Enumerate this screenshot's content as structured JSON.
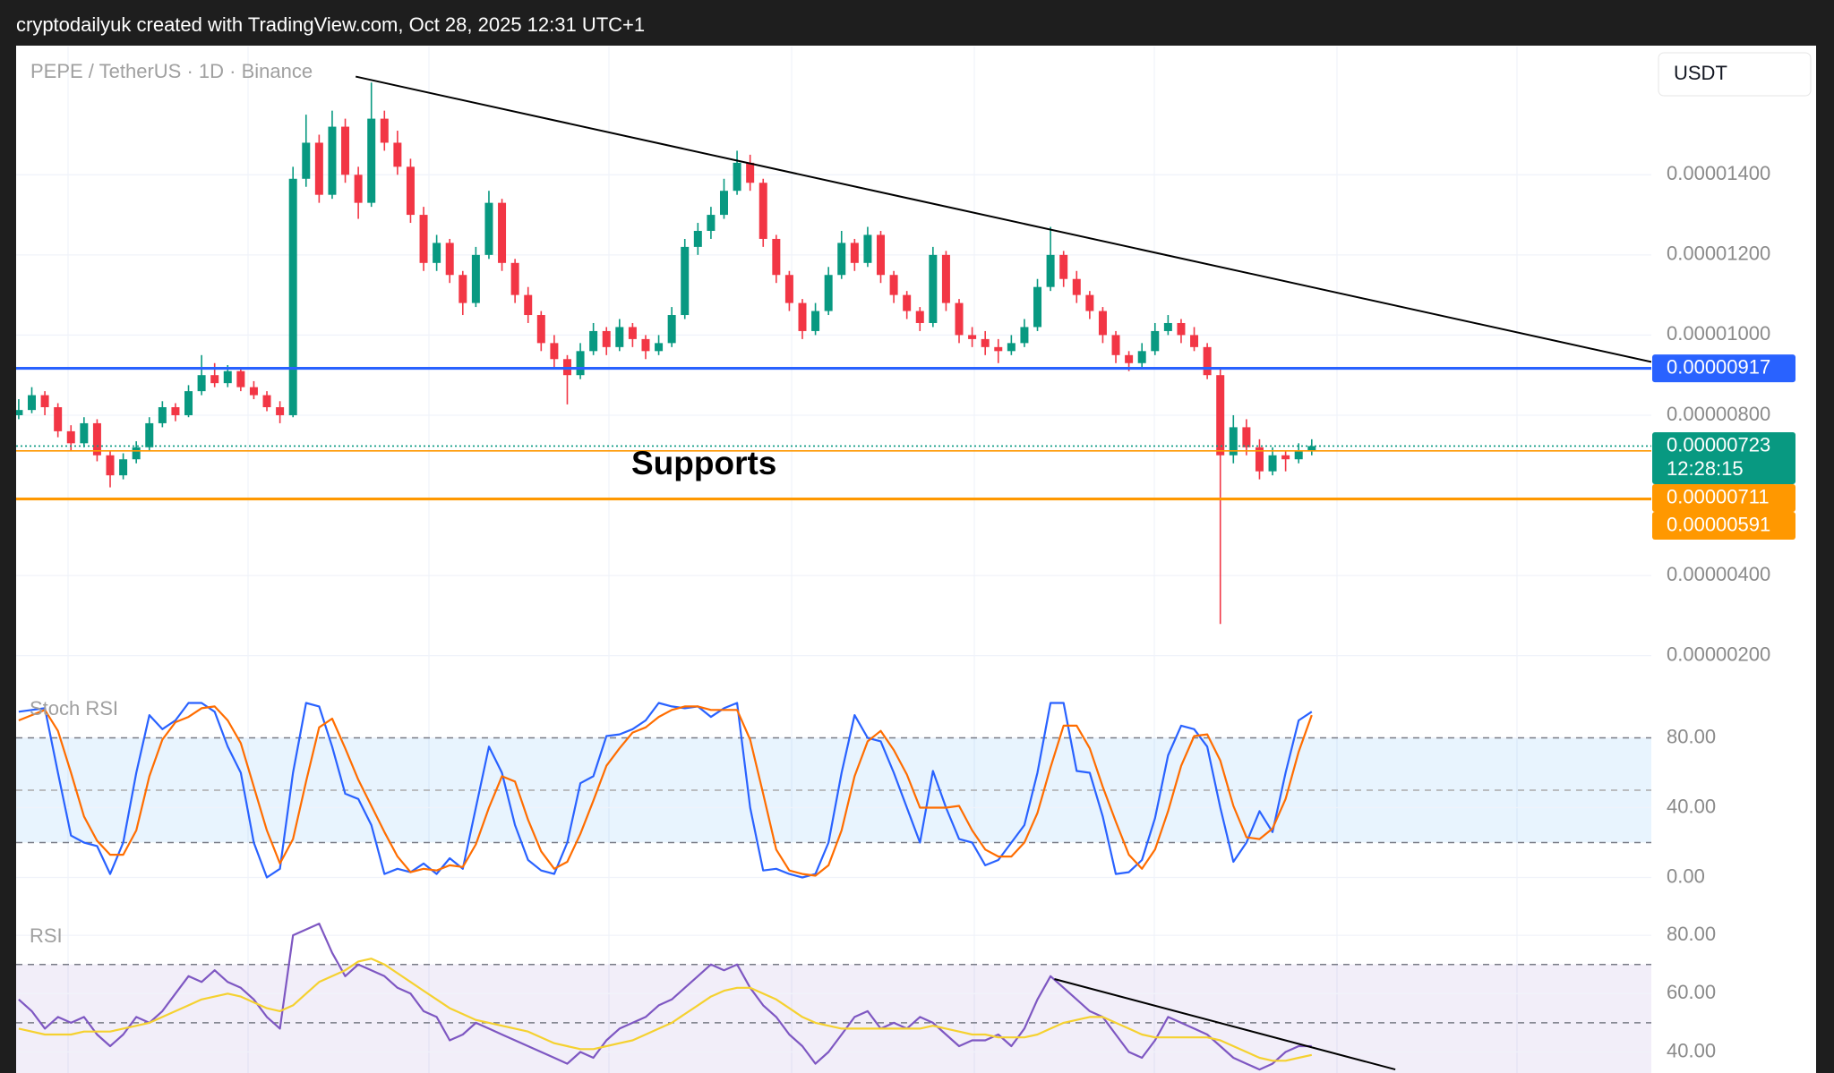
{
  "header": "cryptodailyuk created with TradingView.com, Oct 28, 2025 12:31 UTC+1",
  "chart_data": [
    {
      "type": "candlestick",
      "title": "PEPE / TetherUS · 1D · Binance",
      "currency": "USDT",
      "up_color": "#089981",
      "down_color": "#f23645",
      "grid": true,
      "xlim": [
        -0.2,
        125
      ],
      "ylim": [
        1.3e-06,
        1.72e-05
      ],
      "yticks": [
        {
          "value": 2e-06,
          "label": "0.00000200"
        },
        {
          "value": 4e-06,
          "label": "0.00000400"
        },
        {
          "value": 8e-06,
          "label": "0.00000800"
        },
        {
          "value": 1e-05,
          "label": "0.00001000"
        },
        {
          "value": 1.2e-05,
          "label": "0.00001200"
        },
        {
          "value": 1.4e-05,
          "label": "0.00001400"
        }
      ],
      "candles": [
        [
          8e-06,
          8.4e-06,
          7.9e-06,
          8.13e-06
        ],
        [
          8.13e-06,
          8.7e-06,
          8.05e-06,
          8.5e-06
        ],
        [
          8.5e-06,
          8.6e-06,
          8e-06,
          8.2e-06
        ],
        [
          8.2e-06,
          8.3e-06,
          7.45e-06,
          7.6e-06
        ],
        [
          7.6e-06,
          7.75e-06,
          7.1e-06,
          7.3e-06
        ],
        [
          7.3e-06,
          7.95e-06,
          7.2e-06,
          7.8e-06
        ],
        [
          7.8e-06,
          7.9e-06,
          6.85e-06,
          7e-06
        ],
        [
          7e-06,
          7.1e-06,
          6.2e-06,
          6.5e-06
        ],
        [
          6.5e-06,
          7.05e-06,
          6.4e-06,
          6.9e-06
        ],
        [
          6.9e-06,
          7.35e-06,
          6.8e-06,
          7.2e-06
        ],
        [
          7.2e-06,
          7.95e-06,
          7.1e-06,
          7.8e-06
        ],
        [
          7.8e-06,
          8.35e-06,
          7.7e-06,
          8.2e-06
        ],
        [
          8.2e-06,
          8.3e-06,
          7.85e-06,
          8e-06
        ],
        [
          8e-06,
          8.75e-06,
          7.95e-06,
          8.6e-06
        ],
        [
          8.6e-06,
          9.5e-06,
          8.5e-06,
          9e-06
        ],
        [
          9e-06,
          9.3e-06,
          8.7e-06,
          8.8e-06
        ],
        [
          8.8e-06,
          9.25e-06,
          8.7e-06,
          9.1e-06
        ],
        [
          9.1e-06,
          9.2e-06,
          8.6e-06,
          8.7e-06
        ],
        [
          8.7e-06,
          8.85e-06,
          8.4e-06,
          8.5e-06
        ],
        [
          8.5e-06,
          8.6e-06,
          8.1e-06,
          8.2e-06
        ],
        [
          8.2e-06,
          8.35e-06,
          7.8e-06,
          8e-06
        ],
        [
          8e-06,
          1.42e-05,
          7.95e-06,
          1.39e-05
        ],
        [
          1.39e-05,
          1.55e-05,
          1.37e-05,
          1.48e-05
        ],
        [
          1.48e-05,
          1.5e-05,
          1.33e-05,
          1.35e-05
        ],
        [
          1.35e-05,
          1.56e-05,
          1.34e-05,
          1.52e-05
        ],
        [
          1.52e-05,
          1.54e-05,
          1.38e-05,
          1.4e-05
        ],
        [
          1.4e-05,
          1.42e-05,
          1.29e-05,
          1.33e-05
        ],
        [
          1.33e-05,
          1.63e-05,
          1.32e-05,
          1.54e-05
        ],
        [
          1.54e-05,
          1.56e-05,
          1.46e-05,
          1.48e-05
        ],
        [
          1.48e-05,
          1.51e-05,
          1.4e-05,
          1.42e-05
        ],
        [
          1.42e-05,
          1.44e-05,
          1.28e-05,
          1.3e-05
        ],
        [
          1.3e-05,
          1.32e-05,
          1.16e-05,
          1.18e-05
        ],
        [
          1.18e-05,
          1.25e-05,
          1.16e-05,
          1.23e-05
        ],
        [
          1.23e-05,
          1.24e-05,
          1.13e-05,
          1.15e-05
        ],
        [
          1.15e-05,
          1.16e-05,
          1.05e-05,
          1.08e-05
        ],
        [
          1.08e-05,
          1.22e-05,
          1.07e-05,
          1.2e-05
        ],
        [
          1.2e-05,
          1.36e-05,
          1.19e-05,
          1.33e-05
        ],
        [
          1.33e-05,
          1.34e-05,
          1.16e-05,
          1.18e-05
        ],
        [
          1.18e-05,
          1.19e-05,
          1.08e-05,
          1.1e-05
        ],
        [
          1.1e-05,
          1.12e-05,
          1.03e-05,
          1.05e-05
        ],
        [
          1.05e-05,
          1.06e-05,
          9.6e-06,
          9.8e-06
        ],
        [
          9.8e-06,
          1e-05,
          9.2e-06,
          9.4e-06
        ],
        [
          9.4e-06,
          9.5e-06,
          8.27e-06,
          9e-06
        ],
        [
          9e-06,
          9.8e-06,
          8.9e-06,
          9.6e-06
        ],
        [
          9.6e-06,
          1.03e-05,
          9.5e-06,
          1.01e-05
        ],
        [
          1.01e-05,
          1.02e-05,
          9.5e-06,
          9.7e-06
        ],
        [
          9.7e-06,
          1.04e-05,
          9.6e-06,
          1.02e-05
        ],
        [
          1.02e-05,
          1.03e-05,
          9.7e-06,
          9.9e-06
        ],
        [
          9.9e-06,
          1e-05,
          9.4e-06,
          9.6e-06
        ],
        [
          9.6e-06,
          1e-05,
          9.5e-06,
          9.8e-06
        ],
        [
          9.8e-06,
          1.07e-05,
          9.7e-06,
          1.05e-05
        ],
        [
          1.05e-05,
          1.24e-05,
          1.04e-05,
          1.22e-05
        ],
        [
          1.22e-05,
          1.28e-05,
          1.2e-05,
          1.26e-05
        ],
        [
          1.26e-05,
          1.32e-05,
          1.24e-05,
          1.3e-05
        ],
        [
          1.3e-05,
          1.39e-05,
          1.29e-05,
          1.36e-05
        ],
        [
          1.36e-05,
          1.46e-05,
          1.35e-05,
          1.43e-05
        ],
        [
          1.43e-05,
          1.45e-05,
          1.36e-05,
          1.38e-05
        ],
        [
          1.38e-05,
          1.39e-05,
          1.22e-05,
          1.24e-05
        ],
        [
          1.24e-05,
          1.25e-05,
          1.13e-05,
          1.15e-05
        ],
        [
          1.15e-05,
          1.16e-05,
          1.06e-05,
          1.08e-05
        ],
        [
          1.08e-05,
          1.09e-05,
          9.9e-06,
          1.01e-05
        ],
        [
          1.01e-05,
          1.08e-05,
          1e-05,
          1.06e-05
        ],
        [
          1.06e-05,
          1.17e-05,
          1.05e-05,
          1.15e-05
        ],
        [
          1.15e-05,
          1.26e-05,
          1.14e-05,
          1.23e-05
        ],
        [
          1.23e-05,
          1.24e-05,
          1.16e-05,
          1.18e-05
        ],
        [
          1.18e-05,
          1.27e-05,
          1.17e-05,
          1.25e-05
        ],
        [
          1.25e-05,
          1.26e-05,
          1.13e-05,
          1.15e-05
        ],
        [
          1.15e-05,
          1.16e-05,
          1.08e-05,
          1.1e-05
        ],
        [
          1.1e-05,
          1.11e-05,
          1.04e-05,
          1.06e-05
        ],
        [
          1.06e-05,
          1.07e-05,
          1.01e-05,
          1.03e-05
        ],
        [
          1.03e-05,
          1.22e-05,
          1.02e-05,
          1.2e-05
        ],
        [
          1.2e-05,
          1.21e-05,
          1.06e-05,
          1.08e-05
        ],
        [
          1.08e-05,
          1.09e-05,
          9.8e-06,
          1e-05
        ],
        [
          1e-05,
          1.02e-05,
          9.7e-06,
          9.9e-06
        ],
        [
          9.9e-06,
          1.01e-05,
          9.5e-06,
          9.7e-06
        ],
        [
          9.7e-06,
          9.9e-06,
          9.3e-06,
          9.6e-06
        ],
        [
          9.6e-06,
          1e-05,
          9.5e-06,
          9.8e-06
        ],
        [
          9.8e-06,
          1.04e-05,
          9.7e-06,
          1.02e-05
        ],
        [
          1.02e-05,
          1.14e-05,
          1.01e-05,
          1.12e-05
        ],
        [
          1.12e-05,
          1.27e-05,
          1.11e-05,
          1.2e-05
        ],
        [
          1.2e-05,
          1.21e-05,
          1.12e-05,
          1.14e-05
        ],
        [
          1.14e-05,
          1.16e-05,
          1.08e-05,
          1.1e-05
        ],
        [
          1.1e-05,
          1.11e-05,
          1.04e-05,
          1.06e-05
        ],
        [
          1.06e-05,
          1.07e-05,
          9.8e-06,
          1e-05
        ],
        [
          1e-05,
          1.01e-05,
          9.3e-06,
          9.5e-06
        ],
        [
          9.5e-06,
          9.6e-06,
          9.1e-06,
          9.3e-06
        ],
        [
          9.3e-06,
          9.8e-06,
          9.2e-06,
          9.6e-06
        ],
        [
          9.6e-06,
          1.03e-05,
          9.5e-06,
          1.01e-05
        ],
        [
          1.01e-05,
          1.05e-05,
          1e-05,
          1.03e-05
        ],
        [
          1.03e-05,
          1.04e-05,
          9.8e-06,
          1e-05
        ],
        [
          1e-05,
          1.02e-05,
          9.6e-06,
          9.7e-06
        ],
        [
          9.7e-06,
          9.8e-06,
          8.9e-06,
          9e-06
        ],
        [
          9e-06,
          9.2e-06,
          2.79e-06,
          7e-06
        ],
        [
          7e-06,
          8e-06,
          6.8e-06,
          7.7e-06
        ],
        [
          7.7e-06,
          7.9e-06,
          7e-06,
          7.2e-06
        ],
        [
          7.2e-06,
          7.4e-06,
          6.4e-06,
          6.6e-06
        ],
        [
          6.6e-06,
          7.2e-06,
          6.5e-06,
          7e-06
        ],
        [
          7e-06,
          7.1e-06,
          6.6e-06,
          6.9e-06
        ],
        [
          6.9e-06,
          7.3e-06,
          6.8e-06,
          7.1e-06
        ],
        [
          7.1e-06,
          7.4e-06,
          7e-06,
          7.23e-06
        ]
      ],
      "hlines": [
        {
          "value": 9.17e-06,
          "label": "0.00000917",
          "color": "#2962ff",
          "style": "thick"
        },
        {
          "value": 7.23e-06,
          "label": "0.00000723",
          "sublabel": "12:28:15",
          "color": "#089981",
          "style": "dotted"
        },
        {
          "value": 7.11e-06,
          "label": "0.00000711",
          "color": "#ff9800",
          "style": "thin"
        },
        {
          "value": 5.91e-06,
          "label": "0.00000591",
          "color": "#ff9800",
          "style": "thick"
        }
      ],
      "trendlines": [
        {
          "x": [
            25.8,
            125
          ],
          "y": [
            1.645e-05,
            9.33e-06
          ],
          "color": "#000000"
        }
      ],
      "annotation": "Supports"
    },
    {
      "type": "line",
      "title": "Stoch RSI",
      "grid": true,
      "xlim": [
        -0.2,
        125
      ],
      "ylim": [
        -10,
        110
      ],
      "yticks": [
        {
          "value": 0,
          "label": "0.00"
        },
        {
          "value": 40,
          "label": "40.00"
        },
        {
          "value": 80,
          "label": "80.00"
        }
      ],
      "bands": [
        {
          "from": 20,
          "to": 80,
          "color": "rgba(33,150,243,0.1)"
        }
      ],
      "levels": [
        20,
        50,
        80
      ],
      "series": [
        {
          "color": "#2962ff",
          "values": [
            95,
            96,
            97,
            60,
            24,
            20,
            18,
            2,
            20,
            60,
            93,
            85,
            90,
            100,
            100,
            95,
            75,
            60,
            20,
            0,
            5,
            60,
            100,
            98,
            75,
            48,
            45,
            30,
            2,
            5,
            3,
            8,
            2,
            11,
            5,
            40,
            75,
            60,
            30,
            10,
            4,
            2,
            20,
            54,
            58,
            81,
            82,
            85,
            90,
            100,
            98,
            97,
            98,
            92,
            97,
            100,
            40,
            4,
            5,
            2,
            0,
            2,
            20,
            60,
            93,
            80,
            78,
            60,
            40,
            20,
            61,
            40,
            22,
            20,
            7,
            10,
            20,
            30,
            60,
            100,
            100,
            61,
            60,
            35,
            2,
            3,
            10,
            34,
            70,
            87,
            85,
            75,
            40,
            9,
            20,
            38,
            26,
            60,
            90,
            95
          ]
        },
        {
          "color": "#ff6d00",
          "values": [
            90,
            93,
            96,
            84,
            60,
            35,
            21,
            13,
            13,
            27,
            58,
            79,
            89,
            92,
            97,
            98,
            90,
            77,
            52,
            27,
            8,
            22,
            55,
            86,
            91,
            74,
            56,
            41,
            26,
            12,
            3,
            5,
            4,
            7,
            6,
            19,
            40,
            58,
            55,
            33,
            15,
            5,
            9,
            25,
            44,
            64,
            74,
            83,
            86,
            92,
            96,
            98,
            98,
            96,
            96,
            96,
            79,
            48,
            16,
            4,
            2,
            1,
            7,
            27,
            58,
            78,
            84,
            73,
            59,
            40,
            40,
            40,
            41,
            27,
            16,
            12,
            12,
            20,
            37,
            63,
            87,
            87,
            74,
            52,
            32,
            13,
            5,
            16,
            38,
            64,
            81,
            82,
            67,
            41,
            23,
            22,
            28,
            45,
            72,
            93
          ]
        }
      ]
    },
    {
      "type": "line",
      "title": "RSI",
      "grid": true,
      "xlim": [
        -0.2,
        125
      ],
      "ylim": [
        32.8,
        87.7
      ],
      "yticks": [
        {
          "value": 40,
          "label": "40.00"
        },
        {
          "value": 60,
          "label": "60.00"
        },
        {
          "value": 80,
          "label": "80.00"
        }
      ],
      "bands": [
        {
          "from": 30,
          "to": 70,
          "color": "rgba(126,87,194,0.1)"
        }
      ],
      "levels": [
        50,
        70
      ],
      "series": [
        {
          "color": "#7e57c2",
          "values": [
            58,
            54,
            48,
            52,
            50,
            52,
            46,
            42,
            46,
            52,
            50,
            54,
            60,
            66,
            64,
            68,
            64,
            62,
            58,
            52,
            48,
            80,
            82,
            84,
            74,
            66,
            70,
            68,
            66,
            62,
            60,
            54,
            52,
            44,
            46,
            50,
            48,
            46,
            44,
            42,
            40,
            38,
            36,
            40,
            38,
            44,
            48,
            50,
            52,
            56,
            58,
            62,
            66,
            70,
            68,
            70,
            62,
            56,
            52,
            46,
            42,
            36,
            40,
            46,
            52,
            54,
            48,
            50,
            48,
            52,
            50,
            46,
            42,
            44,
            44,
            46,
            42,
            48,
            58,
            66,
            62,
            58,
            54,
            52,
            46,
            40,
            38,
            44,
            52,
            50,
            48,
            46,
            42,
            38,
            36,
            34,
            36,
            40,
            42,
            42
          ]
        },
        {
          "color": "#f5d130",
          "values": [
            48,
            47,
            46,
            46,
            46,
            47,
            47,
            47,
            48,
            49,
            50,
            52,
            54,
            56,
            58,
            59,
            60,
            59,
            57,
            55,
            54,
            56,
            60,
            64,
            66,
            68,
            71,
            72,
            70,
            67,
            64,
            61,
            58,
            55,
            53,
            51,
            50,
            49,
            48,
            47,
            45,
            43,
            42,
            41,
            41,
            42,
            43,
            44,
            46,
            48,
            50,
            53,
            56,
            59,
            61,
            62,
            62,
            60,
            58,
            55,
            52,
            50,
            49,
            48,
            48,
            48,
            48,
            48,
            48,
            48,
            49,
            48,
            47,
            46,
            46,
            45,
            45,
            45,
            46,
            48,
            50,
            51,
            52,
            52,
            50,
            48,
            46,
            45,
            45,
            45,
            45,
            45,
            44,
            42,
            40,
            38,
            37,
            37,
            38,
            39
          ]
        }
      ],
      "trendlines": [
        {
          "x": [
            79.3,
            105.4
          ],
          "y": [
            65,
            34
          ],
          "color": "#000000"
        }
      ]
    }
  ]
}
